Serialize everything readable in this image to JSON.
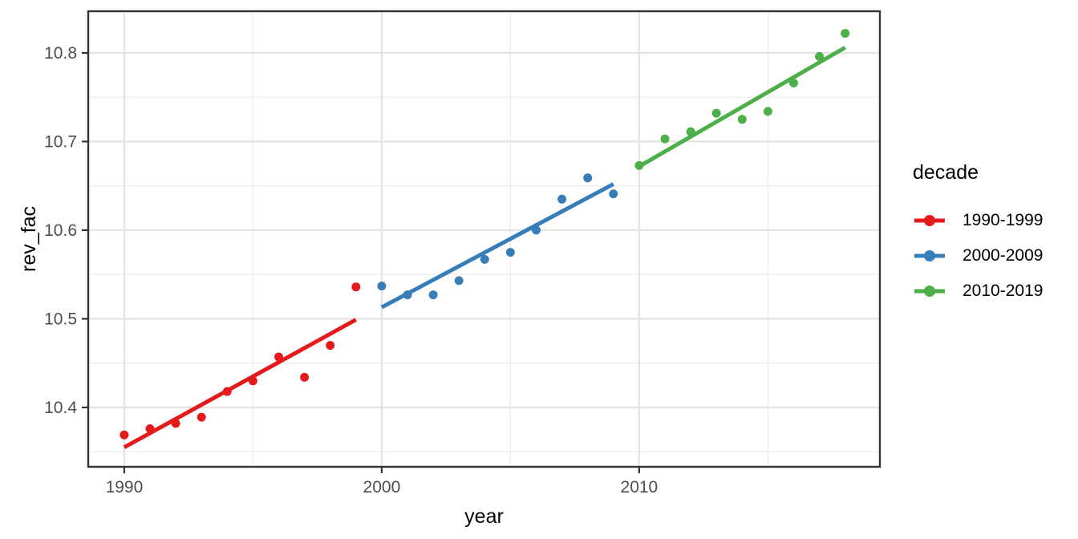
{
  "chart_data": {
    "type": "scatter",
    "title": "",
    "xlabel": "year",
    "ylabel": "rev_fac",
    "legend_title": "decade",
    "legend_position": "right",
    "grid": true,
    "xlim": [
      1988.6,
      2019.35
    ],
    "ylim": [
      10.333,
      10.847
    ],
    "xticks": {
      "major": [
        1990,
        2000,
        2010
      ],
      "minor": [
        1995,
        2005,
        2015
      ]
    },
    "yticks": {
      "major": [
        10.4,
        10.5,
        10.6,
        10.7,
        10.8
      ],
      "minor": [
        10.35,
        10.45,
        10.55,
        10.65,
        10.75
      ]
    },
    "series": [
      {
        "name": "1990-1999",
        "color": "#E41A1C",
        "x": [
          1990,
          1991,
          1992,
          1993,
          1994,
          1995,
          1996,
          1997,
          1998,
          1999
        ],
        "y": [
          10.369,
          10.376,
          10.382,
          10.389,
          10.418,
          10.43,
          10.457,
          10.434,
          10.47,
          10.536
        ],
        "trend": {
          "x1": 1990,
          "y1": 10.355,
          "x2": 1999,
          "y2": 10.499
        }
      },
      {
        "name": "2000-2009",
        "color": "#377EB8",
        "x": [
          2000,
          2001,
          2002,
          2003,
          2004,
          2005,
          2006,
          2007,
          2008,
          2009
        ],
        "y": [
          10.537,
          10.527,
          10.527,
          10.543,
          10.567,
          10.575,
          10.6,
          10.635,
          10.659,
          10.641
        ],
        "trend": {
          "x1": 2000,
          "y1": 10.513,
          "x2": 2009,
          "y2": 10.652
        }
      },
      {
        "name": "2010-2019",
        "color": "#4DAF4A",
        "x": [
          2010,
          2011,
          2012,
          2013,
          2014,
          2015,
          2016,
          2017,
          2018
        ],
        "y": [
          10.673,
          10.703,
          10.711,
          10.732,
          10.725,
          10.734,
          10.766,
          10.796,
          10.822
        ],
        "trend": {
          "x1": 2010,
          "y1": 10.672,
          "x2": 2018,
          "y2": 10.806
        }
      }
    ],
    "style": {
      "grid_major_color": "#E4E4E4",
      "grid_minor_color": "#EDEDED",
      "panel_border_color": "#333333",
      "tick_color": "#333333",
      "tick_label_color": "#4D4D4D",
      "axis_title_color": "#000000",
      "point_radius": 5.5,
      "trend_width": 5
    }
  }
}
